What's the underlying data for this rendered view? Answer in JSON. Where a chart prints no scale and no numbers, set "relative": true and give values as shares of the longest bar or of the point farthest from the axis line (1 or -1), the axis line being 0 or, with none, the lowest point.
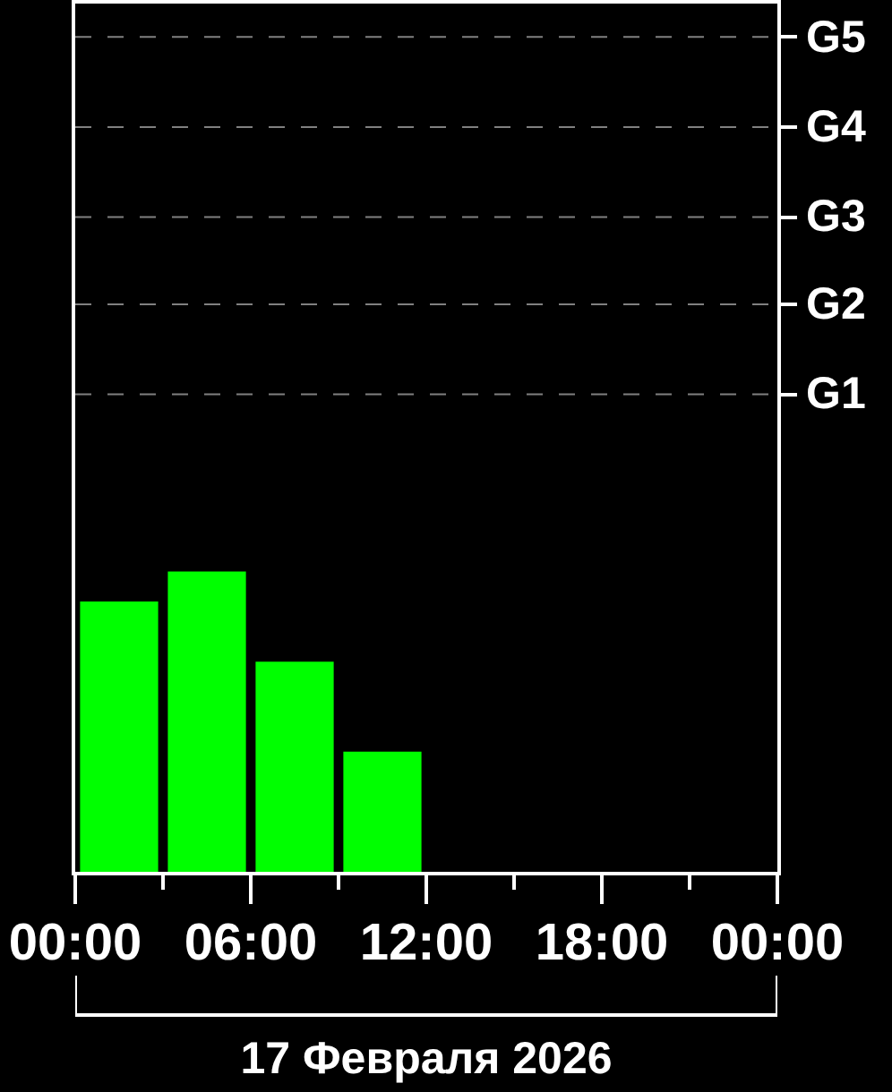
{
  "chart_data": {
    "type": "bar",
    "relative": true,
    "x": [
      1.5,
      4.5,
      7.5,
      10.5
    ],
    "values": [
      0.9,
      1.0,
      0.7,
      0.4
    ],
    "color": "#00ff00",
    "xlim": [
      0,
      24
    ],
    "xticks": [
      {
        "value": 0,
        "label": "00:00"
      },
      {
        "value": 3,
        "label": null
      },
      {
        "value": 6,
        "label": "06:00"
      },
      {
        "value": 9,
        "label": null
      },
      {
        "value": 12,
        "label": "12:00"
      },
      {
        "value": 15,
        "label": null
      },
      {
        "value": 18,
        "label": "18:00"
      },
      {
        "value": 21,
        "label": null
      },
      {
        "value": 24,
        "label": "00:00"
      }
    ],
    "xlabel": "17 Февраля 2026",
    "ref_lines": [
      {
        "axis": "y",
        "value": 1.59,
        "label": "G1",
        "color": "#808080",
        "line_style": "dashed"
      },
      {
        "axis": "y",
        "value": 1.89,
        "label": "G2",
        "color": "#808080",
        "line_style": "dashed"
      },
      {
        "axis": "y",
        "value": 2.18,
        "label": "G3",
        "color": "#808080",
        "line_style": "dashed"
      },
      {
        "axis": "y",
        "value": 2.48,
        "label": "G4",
        "color": "#808080",
        "line_style": "dashed"
      },
      {
        "axis": "y",
        "value": 2.78,
        "label": "G5",
        "color": "#808080",
        "line_style": "dashed"
      }
    ],
    "grid": false,
    "legend": false
  }
}
